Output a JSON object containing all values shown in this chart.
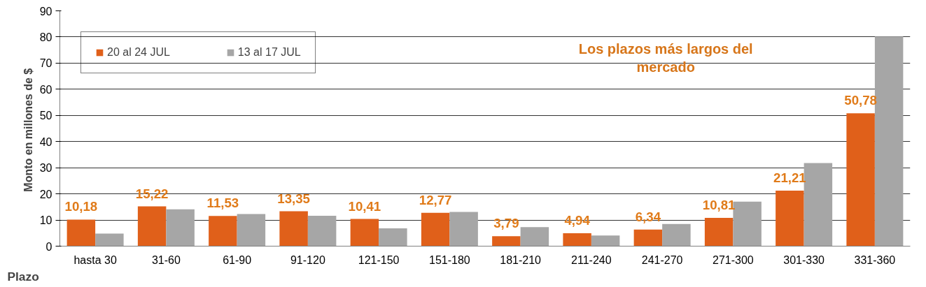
{
  "chart_data": {
    "type": "bar",
    "xlabel": "Plazo",
    "ylabel": "Monto en  millones de $",
    "categories": [
      "hasta 30",
      "31-60",
      "61-90",
      "91-120",
      "121-150",
      "151-180",
      "181-210",
      "211-240",
      "241-270",
      "271-300",
      "301-330",
      "331-360"
    ],
    "series": [
      {
        "name": "20 al 24 JUL",
        "color": "#e0601a",
        "values": [
          10.18,
          15.22,
          11.53,
          13.35,
          10.41,
          12.77,
          3.79,
          4.94,
          6.34,
          10.81,
          21.21,
          50.78
        ],
        "value_labels": [
          "10,18",
          "15,22",
          "11,53",
          "13,35",
          "10,41",
          "12,77",
          "3,79",
          "4,94",
          "6,34",
          "10,81",
          "21,21",
          "50,78"
        ]
      },
      {
        "name": "13 al 17 JUL",
        "color": "#a6a6a6",
        "values": [
          4.8,
          14.1,
          12.3,
          11.6,
          6.8,
          13.1,
          7.3,
          4.1,
          8.5,
          17.0,
          31.8,
          80.2
        ]
      }
    ],
    "ylim": [
      0,
      90
    ],
    "yticks": [
      0,
      10,
      20,
      30,
      40,
      50,
      60,
      70,
      80,
      90
    ],
    "grid": "y",
    "legend": "top left",
    "annotations": [
      "Los plazos más largos del mercado"
    ]
  }
}
